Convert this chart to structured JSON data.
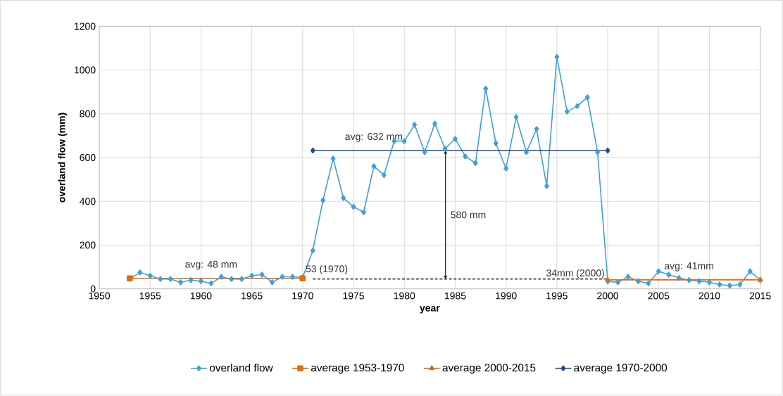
{
  "chart_data": {
    "type": "line",
    "xlabel": "year",
    "ylabel": "overland flow (mm)",
    "xlim": [
      1950,
      2015
    ],
    "xticks": [
      1950,
      1955,
      1960,
      1965,
      1970,
      1975,
      1980,
      1985,
      1990,
      1995,
      2000,
      2005,
      2010,
      2015
    ],
    "ylim": [
      0,
      1200
    ],
    "yticks": [
      0,
      200,
      400,
      600,
      800,
      1000,
      1200
    ],
    "grid": true,
    "legend": "bottom",
    "series": [
      {
        "name": "overland flow",
        "color": "#41a0d8",
        "marker": "diamond",
        "x": [
          1953,
          1954,
          1955,
          1956,
          1957,
          1958,
          1959,
          1960,
          1961,
          1962,
          1963,
          1964,
          1965,
          1966,
          1967,
          1968,
          1969,
          1970,
          1971,
          1972,
          1973,
          1974,
          1975,
          1976,
          1977,
          1978,
          1979,
          1980,
          1981,
          1982,
          1983,
          1984,
          1985,
          1986,
          1987,
          1988,
          1989,
          1990,
          1991,
          1992,
          1993,
          1994,
          1995,
          1996,
          1997,
          1998,
          1999,
          2000,
          2001,
          2002,
          2003,
          2004,
          2005,
          2006,
          2007,
          2008,
          2009,
          2010,
          2011,
          2012,
          2013,
          2014,
          2015
        ],
        "values": [
          45,
          75,
          60,
          45,
          45,
          30,
          40,
          35,
          25,
          55,
          45,
          45,
          60,
          65,
          30,
          55,
          55,
          53,
          175,
          405,
          595,
          415,
          375,
          350,
          560,
          520,
          675,
          675,
          750,
          625,
          755,
          640,
          685,
          605,
          575,
          915,
          665,
          550,
          785,
          625,
          730,
          470,
          1060,
          810,
          835,
          875,
          625,
          34,
          30,
          55,
          35,
          25,
          80,
          65,
          50,
          40,
          35,
          30,
          20,
          15,
          20,
          80,
          40
        ]
      },
      {
        "name": "average 1953-1970",
        "color": "#e46c0a",
        "marker": "square",
        "x": [
          1953,
          1970
        ],
        "values": [
          48,
          48
        ]
      },
      {
        "name": "average 2000-2015",
        "color": "#e46c0a",
        "marker": "triangle",
        "x": [
          2000,
          2015
        ],
        "values": [
          41,
          41
        ]
      },
      {
        "name": "average 1970-2000",
        "color": "#1f4e9a",
        "marker": "diamond",
        "x": [
          1971,
          2000
        ],
        "values": [
          632,
          632
        ]
      },
      {
        "color": "#404040",
        "marker": "none",
        "line_style": "dashed",
        "x": [
          1971,
          2000
        ],
        "values": [
          45,
          45
        ]
      }
    ],
    "annotations": [
      {
        "text": "avg: 48 mm",
        "x": 1961,
        "y": 48
      },
      {
        "text": "avg: 632 mm",
        "x": 1977,
        "y": 632
      },
      {
        "text": "53 (1970)",
        "x": 1970,
        "y": 53
      },
      {
        "text": "34mm (2000)",
        "x": 2000,
        "y": 34
      },
      {
        "text": "avg: 41mm",
        "x": 2008,
        "y": 41
      },
      "580 mm"
    ]
  }
}
